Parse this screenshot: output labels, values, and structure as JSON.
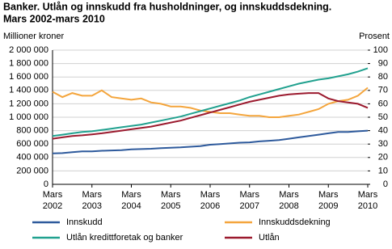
{
  "chart_data": {
    "type": "line",
    "title": "Banker. Utlån og innskudd fra husholdninger, og innskuddsdekning.",
    "subtitle": "Mars 2002-mars 2010",
    "y_label": "Millioner kroner",
    "y2_label": "Prosent",
    "x": [
      "2002-03",
      "2002-06",
      "2002-09",
      "2002-12",
      "2003-03",
      "2003-06",
      "2003-09",
      "2003-12",
      "2004-03",
      "2004-06",
      "2004-09",
      "2004-12",
      "2005-03",
      "2005-06",
      "2005-09",
      "2005-12",
      "2006-03",
      "2006-06",
      "2006-09",
      "2006-12",
      "2007-03",
      "2007-06",
      "2007-09",
      "2007-12",
      "2008-03",
      "2008-06",
      "2008-09",
      "2008-12",
      "2009-03",
      "2009-06",
      "2009-09",
      "2009-12",
      "2010-03"
    ],
    "xticks": [
      {
        "value": "2002-03",
        "month": "Mars",
        "year": "2002"
      },
      {
        "value": "2003-03",
        "month": "Mars",
        "year": "2003"
      },
      {
        "value": "2004-03",
        "month": "Mars",
        "year": "2004"
      },
      {
        "value": "2005-03",
        "month": "Mars",
        "year": "2005"
      },
      {
        "value": "2006-03",
        "month": "Mars",
        "year": "2006"
      },
      {
        "value": "2007-03",
        "month": "Mars",
        "year": "2007"
      },
      {
        "value": "2008-03",
        "month": "Mars",
        "year": "2008"
      },
      {
        "value": "2009-03",
        "month": "Mars",
        "year": "2009"
      },
      {
        "value": "2010-03",
        "month": "Mars",
        "year": "2010"
      }
    ],
    "ylim": [
      0,
      2000000
    ],
    "yticks": [
      0,
      {
        "value": 200000,
        "label": "200 000"
      },
      {
        "value": 400000,
        "label": "400 000"
      },
      {
        "value": 600000,
        "label": "600 000"
      },
      {
        "value": 800000,
        "label": "800 000"
      },
      {
        "value": 1000000,
        "label": "1 000 000"
      },
      {
        "value": 1200000,
        "label": "1 200 000"
      },
      {
        "value": 1400000,
        "label": "1 400 000"
      },
      {
        "value": 1600000,
        "label": "1 600 000"
      },
      {
        "value": 1800000,
        "label": "1 800 000"
      },
      {
        "value": 2000000,
        "label": "2 000 000"
      }
    ],
    "y2lim": [
      0,
      100
    ],
    "y2ticks": [
      0,
      10,
      20,
      30,
      40,
      50,
      60,
      70,
      80,
      90,
      100
    ],
    "grid": true,
    "series": [
      {
        "name": "Innskudd",
        "color": "#2e5a9c",
        "values": [
          460000,
          465000,
          480000,
          490000,
          490000,
          500000,
          505000,
          510000,
          520000,
          525000,
          530000,
          540000,
          545000,
          550000,
          560000,
          570000,
          590000,
          600000,
          610000,
          620000,
          625000,
          640000,
          650000,
          660000,
          680000,
          700000,
          720000,
          740000,
          760000,
          780000,
          780000,
          790000,
          800000
        ]
      },
      {
        "name": "Innskuddsdekning",
        "color": "#f4a53c",
        "axis": "y2",
        "values": [
          69,
          65,
          68,
          66,
          66,
          70,
          65,
          64,
          63,
          64,
          61,
          60,
          58,
          58,
          57,
          55,
          54,
          53,
          53,
          52,
          51,
          51,
          50,
          50,
          51,
          52,
          54,
          56,
          60,
          62,
          63,
          66,
          72
        ]
      },
      {
        "name": "Utlån kredittforetak og banker",
        "color": "#21a18f",
        "values": [
          720000,
          740000,
          760000,
          780000,
          790000,
          810000,
          830000,
          850000,
          870000,
          890000,
          920000,
          950000,
          980000,
          1010000,
          1050000,
          1090000,
          1130000,
          1170000,
          1210000,
          1250000,
          1300000,
          1340000,
          1380000,
          1420000,
          1460000,
          1500000,
          1530000,
          1560000,
          1580000,
          1610000,
          1640000,
          1680000,
          1730000
        ]
      },
      {
        "name": "Utlån",
        "color": "#9b1a2e",
        "values": [
          680000,
          700000,
          720000,
          730000,
          745000,
          760000,
          780000,
          800000,
          820000,
          840000,
          860000,
          890000,
          920000,
          950000,
          990000,
          1030000,
          1070000,
          1110000,
          1150000,
          1190000,
          1230000,
          1260000,
          1290000,
          1320000,
          1340000,
          1350000,
          1360000,
          1360000,
          1280000,
          1240000,
          1220000,
          1200000,
          1140000
        ]
      }
    ]
  }
}
